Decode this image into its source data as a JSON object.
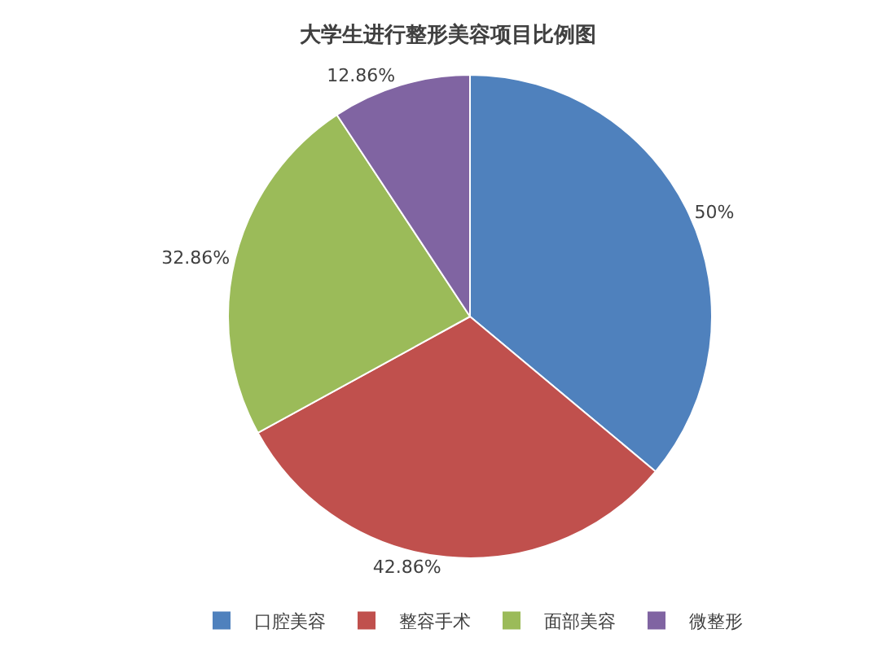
{
  "chart_data": {
    "type": "pie",
    "title": "大学生进行整形美容项目比例图",
    "categories": [
      "口腔美容",
      "整容手术",
      "面部美容",
      "微整形"
    ],
    "values": [
      50,
      42.86,
      32.86,
      12.86
    ],
    "value_labels": [
      "50%",
      "42.86%",
      "32.86%",
      "12.86%"
    ],
    "colors": [
      "#4f81bd",
      "#c0504d",
      "#9bbb59",
      "#8064a2"
    ],
    "legend": "bottom"
  }
}
